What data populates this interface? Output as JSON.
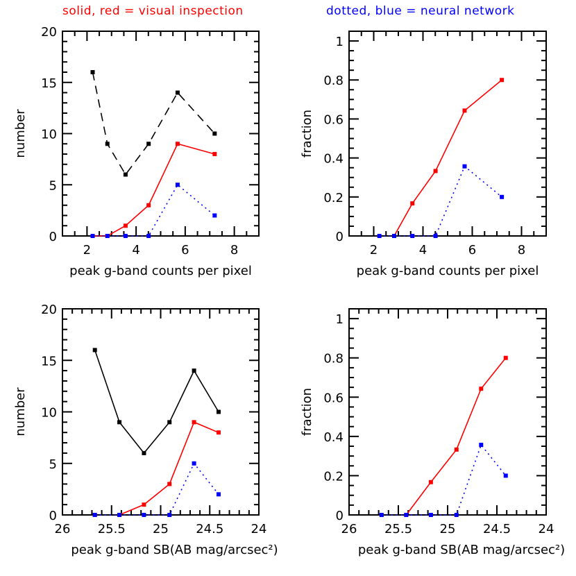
{
  "header": {
    "left": "solid, red = visual inspection",
    "right": "dotted, blue = neural network",
    "left_color": "#ff0000",
    "right_color": "#0000ff"
  },
  "chart_data": [
    {
      "type": "line",
      "panel": "top-left",
      "xlabel": "peak g-band counts per pixel",
      "ylabel": "number",
      "xlim": [
        1,
        9
      ],
      "ylim": [
        0,
        20
      ],
      "xticks": [
        2,
        4,
        6,
        8
      ],
      "yticks": [
        0,
        5,
        10,
        15,
        20
      ],
      "x": [
        2.23,
        2.83,
        3.57,
        4.51,
        5.69,
        7.2
      ],
      "series": [
        {
          "values": [
            16,
            9,
            6,
            9,
            14,
            10
          ],
          "color": "#000000",
          "style": "dashed"
        },
        {
          "values": [
            0,
            0,
            1,
            3,
            9,
            8
          ],
          "color": "#ff0000",
          "style": "solid"
        },
        {
          "values": [
            0,
            0,
            0,
            0,
            5,
            2
          ],
          "color": "#0000ff",
          "style": "dotted"
        }
      ]
    },
    {
      "type": "line",
      "panel": "top-right",
      "xlabel": "peak g-band counts per pixel",
      "ylabel": "fraction",
      "xlim": [
        1,
        9
      ],
      "ylim": [
        0,
        1.05
      ],
      "xticks": [
        2,
        4,
        6,
        8
      ],
      "yticks": [
        "0",
        "0.2",
        "0.4",
        "0.6",
        "0.8",
        "1"
      ],
      "x": [
        2.23,
        2.83,
        3.57,
        4.51,
        5.69,
        7.2
      ],
      "series": [
        {
          "values": [
            0,
            0,
            0.167,
            0.333,
            0.643,
            0.8
          ],
          "color": "#ff0000",
          "style": "solid",
          "start": 1
        },
        {
          "values": [
            0,
            0,
            0,
            0,
            0.357,
            0.2
          ],
          "color": "#0000ff",
          "style": "dotted"
        }
      ]
    },
    {
      "type": "line",
      "panel": "bottom-left",
      "xlabel": "peak g-band SB(AB mag/arcsec²)",
      "ylabel": "number",
      "xlim": [
        26,
        24
      ],
      "ylim": [
        0,
        20
      ],
      "xticks": [
        "26",
        "25.5",
        "25",
        "24.5",
        "24"
      ],
      "yticks": [
        0,
        5,
        10,
        15,
        20
      ],
      "x": [
        25.67,
        25.42,
        25.17,
        24.91,
        24.66,
        24.41
      ],
      "series": [
        {
          "values": [
            16,
            9,
            6,
            9,
            14,
            10
          ],
          "color": "#000000",
          "style": "solid"
        },
        {
          "values": [
            0,
            0,
            1,
            3,
            9,
            8
          ],
          "color": "#ff0000",
          "style": "solid",
          "start": 1
        },
        {
          "values": [
            0,
            0,
            0,
            0,
            5,
            2
          ],
          "color": "#0000ff",
          "style": "dotted"
        }
      ]
    },
    {
      "type": "line",
      "panel": "bottom-right",
      "xlabel": "peak g-band SB(AB mag/arcsec²)",
      "ylabel": "fraction",
      "xlim": [
        26,
        24
      ],
      "ylim": [
        0,
        1.05
      ],
      "xticks": [
        "26",
        "25.5",
        "25",
        "24.5",
        "24"
      ],
      "yticks": [
        "0",
        "0.2",
        "0.4",
        "0.6",
        "0.8",
        "1"
      ],
      "x": [
        25.67,
        25.42,
        25.17,
        24.91,
        24.66,
        24.41
      ],
      "series": [
        {
          "values": [
            0,
            0,
            0.167,
            0.333,
            0.643,
            0.8
          ],
          "color": "#ff0000",
          "style": "solid",
          "start": 1
        },
        {
          "values": [
            0,
            0,
            0,
            0,
            0.357,
            0.2
          ],
          "color": "#0000ff",
          "style": "dotted"
        }
      ]
    }
  ]
}
